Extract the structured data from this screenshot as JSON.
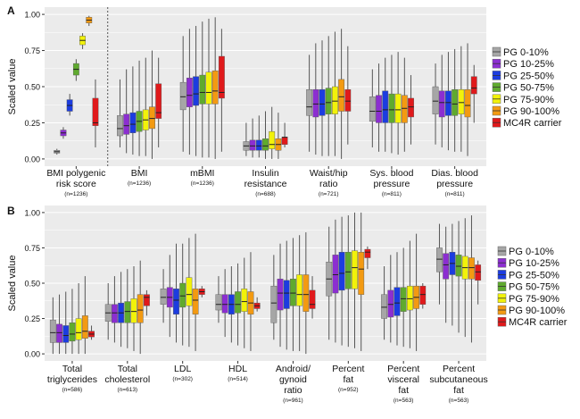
{
  "colors": {
    "panel_bg": "#ebebeb",
    "grid": "#ffffff",
    "whisker": "#555555",
    "median": "#222222",
    "divider": "#555555"
  },
  "legend": [
    {
      "label": "PG 0-10%",
      "color": "#a6a6a6"
    },
    {
      "label": "PG 10-25%",
      "color": "#8c2ed1"
    },
    {
      "label": "PG 25-50%",
      "color": "#1c3ce0"
    },
    {
      "label": "PG 50-75%",
      "color": "#5faa2e"
    },
    {
      "label": "PG 75-90%",
      "color": "#f2f20a"
    },
    {
      "label": "PG 90-100%",
      "color": "#f39a12"
    },
    {
      "label": "MC4R carrier",
      "color": "#e0191b"
    }
  ],
  "chart_data": [
    {
      "panel": "A",
      "type": "boxplot",
      "ylabel": "Scaled value",
      "ylim": [
        -0.05,
        1.05
      ],
      "yticks": [
        "0.00",
        "0.25",
        "0.50",
        "0.75",
        "1.00"
      ],
      "grid": true,
      "legend_position": "right",
      "categories": [
        {
          "label": [
            "BMI polygenic",
            "risk score"
          ],
          "n": "(n=1236)",
          "boxes": [
            [
              0.03,
              0.04,
              0.05,
              0.06,
              0.07
            ],
            [
              0.14,
              0.16,
              0.18,
              0.2,
              0.22
            ],
            [
              0.3,
              0.33,
              0.37,
              0.41,
              0.45
            ],
            [
              0.54,
              0.58,
              0.62,
              0.66,
              0.69
            ],
            [
              0.76,
              0.79,
              0.82,
              0.85,
              0.87
            ],
            [
              0.92,
              0.94,
              0.96,
              0.98,
              0.99
            ],
            [
              0.08,
              0.23,
              0.25,
              0.42,
              0.55
            ]
          ]
        },
        {
          "label": [
            "BMI"
          ],
          "n": "(n=1236)",
          "boxes": [
            [
              0.08,
              0.16,
              0.21,
              0.3,
              0.55
            ],
            [
              0.04,
              0.17,
              0.23,
              0.31,
              0.62
            ],
            [
              0.03,
              0.18,
              0.24,
              0.32,
              0.64
            ],
            [
              0.02,
              0.19,
              0.26,
              0.33,
              0.68
            ],
            [
              0.02,
              0.2,
              0.27,
              0.34,
              0.7
            ],
            [
              0.0,
              0.21,
              0.28,
              0.36,
              0.75
            ],
            [
              0.08,
              0.28,
              0.32,
              0.52,
              0.7
            ]
          ]
        },
        {
          "label": [
            "mBMI"
          ],
          "n": "(n=1236)",
          "boxes": [
            [
              0.05,
              0.34,
              0.43,
              0.53,
              0.85
            ],
            [
              0.03,
              0.36,
              0.44,
              0.56,
              0.9
            ],
            [
              0.02,
              0.37,
              0.45,
              0.57,
              0.92
            ],
            [
              0.01,
              0.38,
              0.46,
              0.58,
              0.95
            ],
            [
              0.01,
              0.38,
              0.46,
              0.6,
              0.97
            ],
            [
              0.0,
              0.38,
              0.47,
              0.61,
              0.98
            ],
            [
              0.05,
              0.42,
              0.46,
              0.71,
              0.9
            ]
          ]
        },
        {
          "label": [
            "Insulin",
            "resistance"
          ],
          "n": "(n=688)",
          "boxes": [
            [
              0.02,
              0.06,
              0.09,
              0.12,
              0.25
            ],
            [
              0.01,
              0.06,
              0.09,
              0.13,
              0.28
            ],
            [
              0.01,
              0.06,
              0.09,
              0.13,
              0.3
            ],
            [
              0.0,
              0.06,
              0.09,
              0.14,
              0.33
            ],
            [
              0.0,
              0.07,
              0.1,
              0.19,
              0.36
            ],
            [
              0.0,
              0.06,
              0.1,
              0.14,
              0.32
            ],
            [
              0.08,
              0.1,
              0.15,
              0.15,
              0.25
            ]
          ]
        },
        {
          "label": [
            "Waist/hip",
            "ratio"
          ],
          "n": "(n=721)",
          "boxes": [
            [
              0.05,
              0.3,
              0.36,
              0.48,
              0.72
            ],
            [
              0.03,
              0.29,
              0.38,
              0.48,
              0.8
            ],
            [
              0.02,
              0.3,
              0.38,
              0.48,
              0.82
            ],
            [
              0.02,
              0.31,
              0.39,
              0.49,
              0.85
            ],
            [
              0.02,
              0.31,
              0.4,
              0.5,
              0.88
            ],
            [
              0.0,
              0.33,
              0.43,
              0.55,
              0.9
            ],
            [
              0.1,
              0.33,
              0.4,
              0.48,
              0.78
            ]
          ]
        },
        {
          "label": [
            "Sys. blood",
            "pressure"
          ],
          "n": "(n=811)",
          "boxes": [
            [
              0.08,
              0.26,
              0.33,
              0.43,
              0.62
            ],
            [
              0.05,
              0.25,
              0.33,
              0.44,
              0.66
            ],
            [
              0.05,
              0.25,
              0.34,
              0.47,
              0.7
            ],
            [
              0.04,
              0.25,
              0.34,
              0.45,
              0.72
            ],
            [
              0.03,
              0.25,
              0.34,
              0.45,
              0.74
            ],
            [
              0.05,
              0.25,
              0.35,
              0.44,
              0.7
            ],
            [
              0.1,
              0.29,
              0.36,
              0.42,
              0.58
            ]
          ]
        },
        {
          "label": [
            "Dias. blood",
            "pressure"
          ],
          "n": "(n=811)",
          "boxes": [
            [
              0.1,
              0.31,
              0.4,
              0.5,
              0.66
            ],
            [
              0.08,
              0.29,
              0.39,
              0.47,
              0.72
            ],
            [
              0.06,
              0.3,
              0.39,
              0.47,
              0.74
            ],
            [
              0.05,
              0.3,
              0.38,
              0.48,
              0.76
            ],
            [
              0.05,
              0.31,
              0.39,
              0.48,
              0.78
            ],
            [
              0.02,
              0.29,
              0.37,
              0.48,
              0.8
            ],
            [
              0.25,
              0.45,
              0.49,
              0.57,
              0.65
            ]
          ]
        }
      ]
    },
    {
      "panel": "B",
      "type": "boxplot",
      "ylabel": "Scaled value",
      "ylim": [
        -0.05,
        1.05
      ],
      "yticks": [
        "0.00",
        "0.25",
        "0.50",
        "0.75",
        "1.00"
      ],
      "grid": true,
      "legend_position": "right",
      "categories": [
        {
          "label": [
            "Total",
            "triglycerides"
          ],
          "n": "(n=586)",
          "boxes": [
            [
              0.0,
              0.08,
              0.15,
              0.24,
              0.4
            ],
            [
              0.0,
              0.08,
              0.15,
              0.21,
              0.42
            ],
            [
              0.0,
              0.08,
              0.13,
              0.2,
              0.44
            ],
            [
              0.0,
              0.09,
              0.14,
              0.22,
              0.46
            ],
            [
              0.0,
              0.1,
              0.15,
              0.25,
              0.5
            ],
            [
              0.0,
              0.11,
              0.16,
              0.27,
              0.55
            ],
            [
              0.1,
              0.12,
              0.14,
              0.16,
              0.2
            ]
          ]
        },
        {
          "label": [
            "Total",
            "cholesterol"
          ],
          "n": "(n=613)",
          "boxes": [
            [
              0.1,
              0.23,
              0.29,
              0.35,
              0.5
            ],
            [
              0.08,
              0.22,
              0.29,
              0.35,
              0.55
            ],
            [
              0.05,
              0.22,
              0.29,
              0.36,
              0.58
            ],
            [
              0.04,
              0.22,
              0.3,
              0.37,
              0.6
            ],
            [
              0.02,
              0.22,
              0.3,
              0.39,
              0.62
            ],
            [
              0.0,
              0.22,
              0.31,
              0.42,
              0.66
            ],
            [
              0.27,
              0.34,
              0.4,
              0.42,
              0.45
            ]
          ]
        },
        {
          "label": [
            "LDL"
          ],
          "n": "(n=302)",
          "boxes": [
            [
              0.22,
              0.35,
              0.4,
              0.46,
              0.6
            ],
            [
              0.12,
              0.33,
              0.4,
              0.47,
              0.7
            ],
            [
              0.08,
              0.28,
              0.38,
              0.46,
              0.78
            ],
            [
              0.06,
              0.33,
              0.41,
              0.5,
              0.78
            ],
            [
              0.05,
              0.34,
              0.42,
              0.54,
              0.82
            ],
            [
              0.02,
              0.28,
              0.38,
              0.46,
              0.85
            ],
            [
              0.4,
              0.42,
              0.44,
              0.46,
              0.48
            ]
          ]
        },
        {
          "label": [
            "HDL"
          ],
          "n": "(n=514)",
          "boxes": [
            [
              0.22,
              0.31,
              0.35,
              0.42,
              0.55
            ],
            [
              0.12,
              0.29,
              0.35,
              0.42,
              0.6
            ],
            [
              0.08,
              0.28,
              0.35,
              0.42,
              0.62
            ],
            [
              0.06,
              0.29,
              0.35,
              0.44,
              0.64
            ],
            [
              0.04,
              0.3,
              0.37,
              0.46,
              0.68
            ],
            [
              0.02,
              0.28,
              0.36,
              0.44,
              0.72
            ],
            [
              0.3,
              0.32,
              0.34,
              0.36,
              0.4
            ]
          ]
        },
        {
          "label": [
            "Android/",
            "gynoid",
            "ratio"
          ],
          "n": "(n=961)",
          "boxes": [
            [
              0.1,
              0.22,
              0.36,
              0.48,
              0.7
            ],
            [
              0.05,
              0.31,
              0.43,
              0.53,
              0.78
            ],
            [
              0.03,
              0.32,
              0.43,
              0.52,
              0.8
            ],
            [
              0.02,
              0.34,
              0.43,
              0.53,
              0.82
            ],
            [
              0.02,
              0.34,
              0.42,
              0.56,
              0.84
            ],
            [
              0.0,
              0.3,
              0.42,
              0.56,
              0.86
            ],
            [
              0.25,
              0.32,
              0.35,
              0.45,
              0.55
            ]
          ]
        },
        {
          "label": [
            "Percent",
            "fat"
          ],
          "n": "(n=952)",
          "boxes": [
            [
              0.1,
              0.41,
              0.53,
              0.65,
              0.9
            ],
            [
              0.08,
              0.43,
              0.56,
              0.7,
              0.95
            ],
            [
              0.06,
              0.45,
              0.57,
              0.72,
              0.97
            ],
            [
              0.05,
              0.46,
              0.58,
              0.72,
              0.98
            ],
            [
              0.04,
              0.46,
              0.61,
              0.73,
              1.0
            ],
            [
              0.02,
              0.42,
              0.6,
              0.72,
              1.0
            ],
            [
              0.6,
              0.68,
              0.72,
              0.74,
              0.76
            ]
          ]
        },
        {
          "label": [
            "Percent",
            "visceral",
            "fat"
          ],
          "n": "(n=563)",
          "boxes": [
            [
              0.1,
              0.25,
              0.33,
              0.42,
              0.62
            ],
            [
              0.08,
              0.26,
              0.35,
              0.45,
              0.7
            ],
            [
              0.06,
              0.27,
              0.36,
              0.47,
              0.72
            ],
            [
              0.05,
              0.3,
              0.39,
              0.47,
              0.75
            ],
            [
              0.04,
              0.31,
              0.39,
              0.48,
              0.8
            ],
            [
              0.02,
              0.32,
              0.4,
              0.48,
              0.85
            ],
            [
              0.32,
              0.35,
              0.42,
              0.48,
              0.5
            ]
          ]
        },
        {
          "label": [
            "Percent",
            "subcutaneous",
            "fat"
          ],
          "n": "(n=563)",
          "boxes": [
            [
              0.35,
              0.58,
              0.67,
              0.75,
              0.92
            ],
            [
              0.22,
              0.53,
              0.63,
              0.71,
              0.9
            ],
            [
              0.2,
              0.56,
              0.64,
              0.72,
              0.92
            ],
            [
              0.15,
              0.55,
              0.62,
              0.7,
              0.94
            ],
            [
              0.12,
              0.53,
              0.61,
              0.69,
              0.96
            ],
            [
              0.08,
              0.53,
              0.61,
              0.68,
              0.98
            ],
            [
              0.35,
              0.52,
              0.58,
              0.63,
              0.66
            ]
          ]
        }
      ]
    }
  ]
}
